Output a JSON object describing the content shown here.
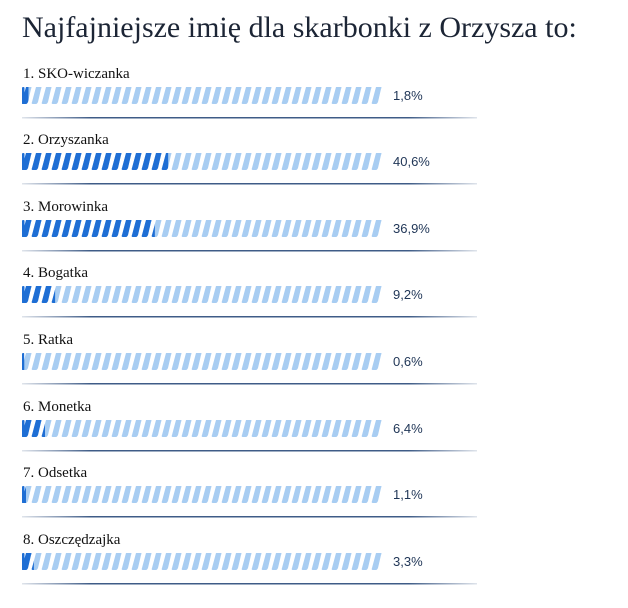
{
  "poll": {
    "title": "Najfajniejsze imię dla skarbonki z Orzysza to:",
    "colors": {
      "filled": "#1e6ed4",
      "empty": "#a8cdf2",
      "divider": "#2a4a7a",
      "percent_text": "#1f3556"
    },
    "options": [
      {
        "label": "1. SKO-wiczanka",
        "percent_text": "1,8%",
        "value": 1.8
      },
      {
        "label": "2. Orzyszanka",
        "percent_text": "40,6%",
        "value": 40.6
      },
      {
        "label": "3. Morowinka",
        "percent_text": "36,9%",
        "value": 36.9
      },
      {
        "label": "4. Bogatka",
        "percent_text": "9,2%",
        "value": 9.2
      },
      {
        "label": "5. Ratka",
        "percent_text": "0,6%",
        "value": 0.6
      },
      {
        "label": "6. Monetka",
        "percent_text": "6,4%",
        "value": 6.4
      },
      {
        "label": "7. Odsetka",
        "percent_text": "1,1%",
        "value": 1.1
      },
      {
        "label": "8. Oszczędzajka",
        "percent_text": "3,3%",
        "value": 3.3
      }
    ]
  }
}
